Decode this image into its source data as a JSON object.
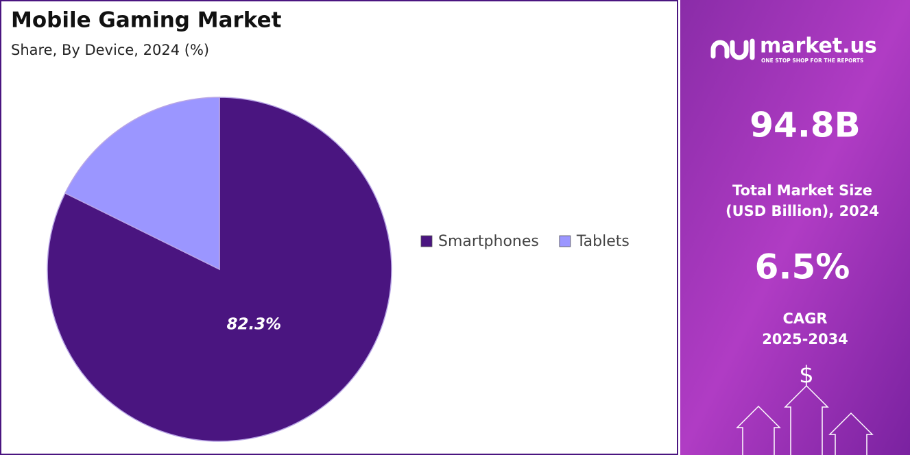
{
  "chart_data": {
    "type": "pie",
    "title": "Mobile Gaming Market",
    "subtitle": "Share, By Device, 2024 (%)",
    "categories": [
      "Smartphones",
      "Tablets"
    ],
    "values": [
      82.3,
      17.7
    ],
    "value_labels": [
      "82.3%",
      null
    ],
    "colors": [
      "#4a1580",
      "#9b96ff"
    ],
    "legend": "right"
  },
  "side_panel": {
    "brand": "market.us",
    "tagline": "ONE STOP SHOP FOR THE REPORTS",
    "market_size": "94.8B",
    "market_size_label": [
      "Total Market Size",
      "(USD Billion), 2024"
    ],
    "cagr": "6.5%",
    "cagr_label": [
      "CAGR",
      "2025-2034"
    ],
    "icon": "$"
  }
}
